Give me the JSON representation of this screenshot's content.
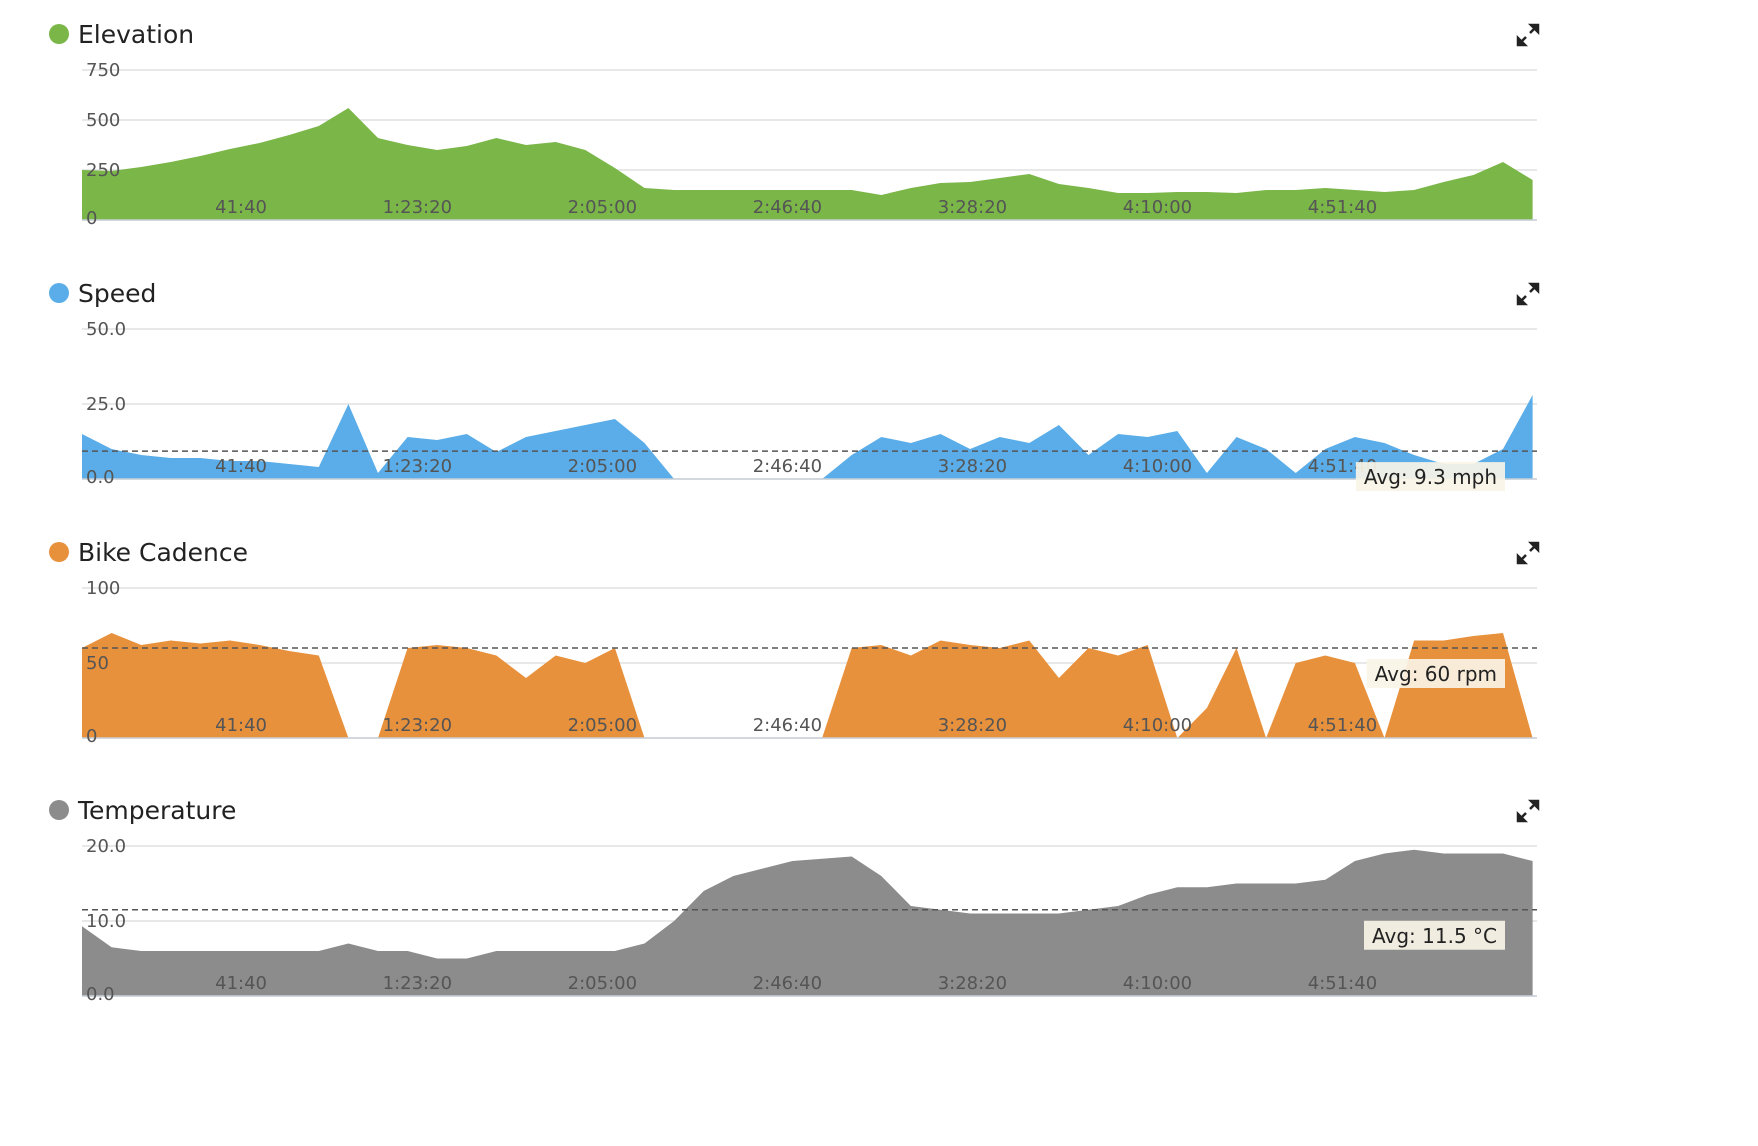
{
  "chart_data": [
    {
      "type": "area",
      "title": "Elevation",
      "color": "#7ab648",
      "x": [
        0,
        400,
        800,
        1200,
        1600,
        2000,
        2400,
        2800,
        3200,
        3600,
        4000,
        4400,
        4800,
        5200,
        5600,
        6000,
        6400,
        6800,
        7200,
        7600,
        8000,
        8400,
        8800,
        9200,
        9600,
        10000,
        10400,
        10800,
        11200,
        11600,
        12000,
        12400,
        12800,
        13200,
        13600,
        14000,
        14400,
        14800,
        15200,
        15600,
        16000,
        16400,
        16800,
        17200,
        17600,
        18000,
        18400,
        18800,
        19200,
        19600
      ],
      "values": [
        250,
        245,
        265,
        290,
        320,
        355,
        385,
        425,
        470,
        560,
        410,
        375,
        350,
        370,
        410,
        375,
        390,
        350,
        260,
        160,
        150,
        150,
        150,
        150,
        150,
        150,
        150,
        125,
        160,
        185,
        190,
        210,
        230,
        180,
        160,
        135,
        135,
        140,
        140,
        135,
        150,
        150,
        160,
        150,
        140,
        150,
        190,
        225,
        290,
        200
      ],
      "xlim": [
        0,
        19660
      ],
      "xticks": [
        {
          "value": 2500,
          "label": "41:40"
        },
        {
          "value": 5000,
          "label": "1:23:20"
        },
        {
          "value": 7500,
          "label": "2:05:00"
        },
        {
          "value": 10000,
          "label": "2:46:40"
        },
        {
          "value": 12500,
          "label": "3:28:20"
        },
        {
          "value": 15000,
          "label": "4:10:00"
        },
        {
          "value": 17500,
          "label": "4:51:40"
        }
      ],
      "ylim": [
        0,
        750
      ],
      "yticks": [
        0,
        250,
        500,
        750
      ],
      "grid": true
    },
    {
      "type": "area",
      "title": "Speed",
      "color": "#5aade8",
      "x": [
        0,
        400,
        800,
        1200,
        1600,
        2000,
        2400,
        2800,
        3200,
        3600,
        4000,
        4400,
        4800,
        5200,
        5600,
        6000,
        6400,
        6800,
        7200,
        7600,
        8000,
        8400,
        8800,
        9200,
        9600,
        10000,
        10400,
        10800,
        11200,
        11600,
        12000,
        12400,
        12800,
        13200,
        13600,
        14000,
        14400,
        14800,
        15200,
        15600,
        16000,
        16400,
        16800,
        17200,
        17600,
        18000,
        18400,
        18800,
        19200,
        19600
      ],
      "values": [
        15,
        10,
        8,
        7,
        7,
        6,
        6,
        5,
        4,
        25,
        2,
        14,
        13,
        15,
        9,
        14,
        16,
        18,
        20,
        12,
        0,
        0,
        0,
        0,
        0,
        0,
        8,
        14,
        12,
        15,
        10,
        14,
        12,
        18,
        8,
        15,
        14,
        16,
        2,
        14,
        10,
        2,
        10,
        14,
        12,
        8,
        5,
        5,
        10,
        28
      ],
      "xlim": [
        0,
        19660
      ],
      "xticks": [
        {
          "value": 2500,
          "label": "41:40"
        },
        {
          "value": 5000,
          "label": "1:23:20"
        },
        {
          "value": 7500,
          "label": "2:05:00"
        },
        {
          "value": 10000,
          "label": "2:46:40"
        },
        {
          "value": 12500,
          "label": "3:28:20"
        },
        {
          "value": 15000,
          "label": "4:10:00"
        },
        {
          "value": 17500,
          "label": "4:51:40"
        }
      ],
      "ylim": [
        0,
        50
      ],
      "yticks": [
        {
          "value": 0,
          "label": "0.0"
        },
        {
          "value": 25,
          "label": "25.0"
        },
        {
          "value": 50,
          "label": "50.0"
        }
      ],
      "grid": true,
      "avg": {
        "value": 9.3,
        "label": "Avg: 9.3 mph"
      }
    },
    {
      "type": "area",
      "title": "Bike Cadence",
      "color": "#e8913c",
      "x": [
        0,
        400,
        800,
        1200,
        1600,
        2000,
        2400,
        2800,
        3200,
        3600,
        4000,
        4400,
        4800,
        5200,
        5600,
        6000,
        6400,
        6800,
        7200,
        7600,
        8000,
        8400,
        8800,
        9200,
        9600,
        10000,
        10400,
        10800,
        11200,
        11600,
        12000,
        12400,
        12800,
        13200,
        13600,
        14000,
        14400,
        14800,
        15200,
        15600,
        16000,
        16400,
        16800,
        17200,
        17600,
        18000,
        18400,
        18800,
        19200,
        19600
      ],
      "values": [
        60,
        70,
        62,
        65,
        63,
        65,
        62,
        58,
        55,
        0,
        0,
        60,
        62,
        60,
        55,
        40,
        55,
        50,
        60,
        0,
        0,
        0,
        0,
        0,
        0,
        0,
        60,
        62,
        55,
        65,
        62,
        60,
        65,
        40,
        60,
        55,
        62,
        0,
        20,
        60,
        0,
        50,
        55,
        50,
        0,
        65,
        65,
        68,
        70,
        0
      ],
      "xlim": [
        0,
        19660
      ],
      "xticks": [
        {
          "value": 2500,
          "label": "41:40"
        },
        {
          "value": 5000,
          "label": "1:23:20"
        },
        {
          "value": 7500,
          "label": "2:05:00"
        },
        {
          "value": 10000,
          "label": "2:46:40"
        },
        {
          "value": 12500,
          "label": "3:28:20"
        },
        {
          "value": 15000,
          "label": "4:10:00"
        },
        {
          "value": 17500,
          "label": "4:51:40"
        }
      ],
      "ylim": [
        0,
        100
      ],
      "yticks": [
        0,
        50,
        100
      ],
      "grid": true,
      "avg": {
        "value": 60,
        "label": "Avg: 60 rpm"
      }
    },
    {
      "type": "area",
      "title": "Temperature",
      "color": "#8c8c8c",
      "x": [
        0,
        400,
        800,
        1200,
        1600,
        2000,
        2400,
        2800,
        3200,
        3600,
        4000,
        4400,
        4800,
        5200,
        5600,
        6000,
        6400,
        6800,
        7200,
        7600,
        8000,
        8400,
        8800,
        9200,
        9600,
        10000,
        10400,
        10800,
        11200,
        11600,
        12000,
        12400,
        12800,
        13200,
        13600,
        14000,
        14400,
        14800,
        15200,
        15600,
        16000,
        16400,
        16800,
        17200,
        17600,
        18000,
        18400,
        18800,
        19200,
        19600
      ],
      "values": [
        9.3,
        6.5,
        6,
        6,
        6,
        6,
        6,
        6,
        6,
        7,
        6,
        6,
        5,
        5,
        6,
        6,
        6,
        6,
        6,
        7,
        10,
        14,
        16,
        17,
        18,
        18.3,
        18.6,
        16,
        12,
        11.5,
        11,
        11,
        11,
        11,
        11.5,
        12,
        13.5,
        14.5,
        14.5,
        15,
        15,
        15,
        15.5,
        18,
        19,
        19.5,
        19,
        19,
        19,
        18
      ],
      "xlim": [
        0,
        19660
      ],
      "xticks": [
        {
          "value": 2500,
          "label": "41:40"
        },
        {
          "value": 5000,
          "label": "1:23:20"
        },
        {
          "value": 7500,
          "label": "2:05:00"
        },
        {
          "value": 10000,
          "label": "2:46:40"
        },
        {
          "value": 12500,
          "label": "3:28:20"
        },
        {
          "value": 15000,
          "label": "4:10:00"
        },
        {
          "value": 17500,
          "label": "4:51:40"
        }
      ],
      "ylim": [
        0,
        20
      ],
      "yticks": [
        {
          "value": 0,
          "label": "0.0"
        },
        {
          "value": 10,
          "label": "10.0"
        },
        {
          "value": 20,
          "label": "20.0"
        }
      ],
      "grid": true,
      "avg": {
        "value": 11.5,
        "label": "Avg: 11.5 °C"
      }
    }
  ]
}
